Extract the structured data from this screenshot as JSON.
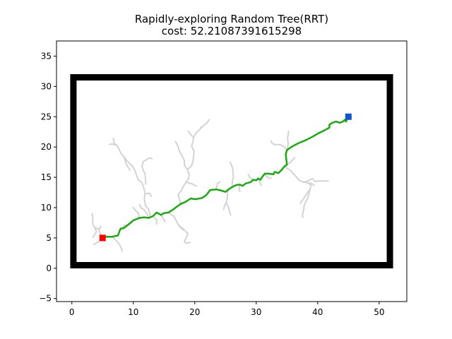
{
  "chart_data": {
    "type": "line",
    "title": "Rapidly-exploring Random Tree(RRT)",
    "subtitle": "cost: 52.21087391615298",
    "xlabel": "",
    "ylabel": "",
    "xlim": [
      -2.5,
      54.5
    ],
    "ylim": [
      -5.5,
      37.5
    ],
    "xticks": [
      0,
      10,
      20,
      30,
      40,
      50
    ],
    "yticks": [
      -5,
      0,
      5,
      10,
      15,
      20,
      25,
      30,
      35
    ],
    "grid": false,
    "colors": {
      "obstacle": "#000000",
      "tree": "#d3d3d3",
      "path": "#1aaa10",
      "start": "#ff0000",
      "goal": "#1155cc"
    },
    "obstacle_rect": {
      "x0": 0.25,
      "y0": 0.5,
      "x1": 51.75,
      "y1": 31.5
    },
    "start": {
      "x": 5,
      "y": 5
    },
    "goal": {
      "x": 45,
      "y": 25
    },
    "path": [
      [
        5,
        5.2
      ],
      [
        6.5,
        5.2
      ],
      [
        7.5,
        5.4
      ],
      [
        7.9,
        6.5
      ],
      [
        8.4,
        6.6
      ],
      [
        9.2,
        7.2
      ],
      [
        10,
        7.9
      ],
      [
        11,
        8.3
      ],
      [
        11.8,
        8.4
      ],
      [
        12.5,
        8.3
      ],
      [
        13.2,
        8.6
      ],
      [
        13.8,
        9.2
      ],
      [
        14.5,
        8.8
      ],
      [
        15,
        9.1
      ],
      [
        15.7,
        9.2
      ],
      [
        16.5,
        9.7
      ],
      [
        17,
        10.1
      ],
      [
        17.7,
        10.6
      ],
      [
        18.6,
        11
      ],
      [
        19.3,
        11.5
      ],
      [
        20.2,
        11.4
      ],
      [
        21.2,
        11.6
      ],
      [
        21.9,
        12.1
      ],
      [
        22.5,
        12.9
      ],
      [
        23.5,
        13
      ],
      [
        24.4,
        12.8
      ],
      [
        25,
        12.6
      ],
      [
        25.6,
        13.1
      ],
      [
        26.1,
        13.4
      ],
      [
        26.7,
        13.7
      ],
      [
        27.3,
        13.8
      ],
      [
        27.8,
        13.6
      ],
      [
        28.3,
        14
      ],
      [
        29.1,
        14.2
      ],
      [
        29.5,
        14.6
      ],
      [
        30,
        14.5
      ],
      [
        30.3,
        14.8
      ],
      [
        30.7,
        14.6
      ],
      [
        31,
        15.1
      ],
      [
        31.4,
        15.6
      ],
      [
        32,
        15.6
      ],
      [
        32.8,
        15.5
      ],
      [
        33,
        15.9
      ],
      [
        33.6,
        15.7
      ],
      [
        34.1,
        16.2
      ],
      [
        34.6,
        16.8
      ],
      [
        35,
        17.1
      ],
      [
        34.9,
        17.9
      ],
      [
        34.8,
        18.8
      ],
      [
        35,
        19.5
      ],
      [
        35.7,
        20
      ],
      [
        36.8,
        20.6
      ],
      [
        38,
        21.1
      ],
      [
        39,
        21.6
      ],
      [
        40,
        22.2
      ],
      [
        41,
        22.7
      ],
      [
        41.9,
        23.2
      ],
      [
        41.9,
        23.7
      ],
      [
        42.4,
        24
      ],
      [
        43,
        24.2
      ],
      [
        43.6,
        24
      ],
      [
        44.1,
        24.2
      ],
      [
        44.4,
        24.5
      ],
      [
        44.6,
        24.2
      ],
      [
        45,
        25
      ]
    ],
    "tree_branches": [
      [
        [
          5.1,
          5.2
        ],
        [
          4.6,
          5.7
        ],
        [
          4.4,
          6.4
        ],
        [
          3.6,
          6.8
        ],
        [
          3.4,
          7.4
        ],
        [
          3.4,
          8.2
        ],
        [
          3.3,
          9.1
        ]
      ],
      [
        [
          4.4,
          6.4
        ],
        [
          4.8,
          7
        ]
      ],
      [
        [
          3.7,
          6.8
        ],
        [
          4,
          6
        ],
        [
          3.6,
          5.4
        ],
        [
          3.4,
          5
        ]
      ],
      [
        [
          5,
          5.2
        ],
        [
          4.5,
          4.5
        ],
        [
          3.9,
          4.1
        ],
        [
          3.5,
          3.9
        ]
      ],
      [
        [
          6.5,
          5.2
        ],
        [
          7.1,
          4.7
        ],
        [
          7.7,
          4
        ],
        [
          8.1,
          3.2
        ],
        [
          8.2,
          2.7
        ]
      ],
      [
        [
          8,
          6.6
        ],
        [
          8.6,
          7.1
        ],
        [
          9.2,
          7.2
        ]
      ],
      [
        [
          10.9,
          8.3
        ],
        [
          10.9,
          9
        ],
        [
          10.4,
          9.5
        ],
        [
          9.9,
          10.1
        ]
      ],
      [
        [
          12.6,
          8.3
        ],
        [
          12.2,
          9
        ],
        [
          11.8,
          9.6
        ],
        [
          11.2,
          10
        ],
        [
          11,
          10.6
        ]
      ],
      [
        [
          12.8,
          8.4
        ],
        [
          12.5,
          9.7
        ],
        [
          12,
          10.3
        ],
        [
          11.8,
          11.4
        ],
        [
          11.9,
          12.3
        ],
        [
          11.7,
          13.3
        ],
        [
          11.4,
          14.1
        ]
      ],
      [
        [
          12,
          12.3
        ],
        [
          12.6,
          12.4
        ],
        [
          13,
          11.8
        ]
      ],
      [
        [
          11.4,
          14.1
        ],
        [
          10.8,
          14.6
        ],
        [
          10.5,
          15.4
        ],
        [
          10.3,
          16
        ],
        [
          9.9,
          16.8
        ],
        [
          9.5,
          17.2
        ],
        [
          8.9,
          17.8
        ],
        [
          8.5,
          18.4
        ],
        [
          8,
          18.9
        ],
        [
          7.7,
          19.6
        ],
        [
          7.3,
          20.3
        ],
        [
          6.9,
          20.6
        ],
        [
          6.7,
          21.5
        ]
      ],
      [
        [
          7.3,
          20.3
        ],
        [
          6.5,
          20.5
        ],
        [
          6,
          20.4
        ]
      ],
      [
        [
          8.5,
          18.4
        ],
        [
          8.8,
          17.3
        ],
        [
          9.2,
          16.6
        ],
        [
          9.5,
          16.1
        ]
      ],
      [
        [
          12,
          13.8
        ],
        [
          12,
          14.6
        ],
        [
          11.9,
          15.6
        ],
        [
          11.6,
          16.2
        ],
        [
          11.4,
          16.8
        ],
        [
          11.6,
          17.6
        ],
        [
          12,
          17.8
        ],
        [
          12.4,
          18.1
        ],
        [
          12.8,
          18.2
        ],
        [
          13.1,
          18
        ]
      ],
      [
        [
          13.2,
          8.6
        ],
        [
          13.8,
          8
        ],
        [
          13.8,
          7.2
        ]
      ],
      [
        [
          14.5,
          8.8
        ],
        [
          14.9,
          8.2
        ],
        [
          15.2,
          7.6
        ]
      ],
      [
        [
          15.7,
          9.2
        ],
        [
          16.6,
          8.6
        ],
        [
          17,
          7.8
        ],
        [
          17.3,
          7.2
        ],
        [
          17.7,
          6.7
        ],
        [
          18.2,
          6.2
        ]
      ],
      [
        [
          17.3,
          7.2
        ],
        [
          18,
          6.6
        ],
        [
          18.9,
          5.7
        ],
        [
          18.6,
          5
        ],
        [
          18.3,
          4.4
        ],
        [
          18.6,
          4.1
        ],
        [
          19.3,
          4.3
        ]
      ],
      [
        [
          17.7,
          10.5
        ],
        [
          17.5,
          11.4
        ],
        [
          17.3,
          12.2
        ],
        [
          17.8,
          12.8
        ],
        [
          18.2,
          13.6
        ],
        [
          18.6,
          14.2
        ],
        [
          19,
          14.8
        ],
        [
          19.1,
          15.5
        ],
        [
          18.8,
          16.3
        ],
        [
          18.3,
          17
        ],
        [
          18.3,
          17.8
        ],
        [
          17.9,
          18.6
        ],
        [
          17.5,
          19.3
        ],
        [
          17.3,
          20.1
        ],
        [
          16.8,
          21
        ]
      ],
      [
        [
          18.8,
          16.3
        ],
        [
          19.4,
          16.8
        ],
        [
          19.7,
          17.6
        ],
        [
          19.8,
          18.4
        ],
        [
          19.9,
          19.3
        ],
        [
          19.5,
          20.1
        ],
        [
          19.7,
          20.9
        ],
        [
          19.8,
          21.6
        ],
        [
          20.3,
          22.4
        ],
        [
          20.9,
          23
        ],
        [
          21.1,
          23.4
        ]
      ],
      [
        [
          19.8,
          21.6
        ],
        [
          19.3,
          22.1
        ],
        [
          18.9,
          22.7
        ]
      ],
      [
        [
          20.9,
          23
        ],
        [
          21.5,
          23.6
        ],
        [
          22,
          24
        ],
        [
          22.4,
          24.6
        ]
      ],
      [
        [
          18.6,
          14.2
        ],
        [
          19.6,
          13.9
        ],
        [
          20.3,
          13.5
        ]
      ],
      [
        [
          23.5,
          13.1
        ],
        [
          23.7,
          14
        ],
        [
          24.2,
          14.3
        ]
      ],
      [
        [
          25.6,
          13.1
        ],
        [
          25.3,
          12.4
        ],
        [
          25.3,
          11.6
        ],
        [
          25.1,
          10.8
        ],
        [
          25.5,
          10
        ],
        [
          25.7,
          9.1
        ],
        [
          25.9,
          8.7
        ]
      ],
      [
        [
          25.1,
          10.8
        ],
        [
          24.8,
          10.2
        ],
        [
          24.7,
          9.6
        ]
      ],
      [
        [
          26.1,
          13.4
        ],
        [
          26.1,
          14.4
        ],
        [
          26.3,
          15
        ],
        [
          26.2,
          15.7
        ],
        [
          26.2,
          16.4
        ],
        [
          26,
          16.9
        ],
        [
          25.7,
          17.6
        ]
      ],
      [
        [
          27.3,
          13.8
        ],
        [
          27.2,
          13
        ],
        [
          27.4,
          12.6
        ]
      ],
      [
        [
          29.5,
          14.6
        ],
        [
          28.9,
          15
        ],
        [
          28.7,
          15.6
        ]
      ],
      [
        [
          30.3,
          14.8
        ],
        [
          30.6,
          14.1
        ],
        [
          30.9,
          13.6
        ]
      ],
      [
        [
          31.4,
          15.6
        ],
        [
          31.8,
          15
        ],
        [
          32.5,
          14.8
        ]
      ],
      [
        [
          34.6,
          16.8
        ],
        [
          35,
          16.5
        ],
        [
          35.6,
          16.1
        ],
        [
          36,
          15.6
        ],
        [
          36.5,
          15.1
        ],
        [
          37,
          14.5
        ],
        [
          37.7,
          14.2
        ],
        [
          38.4,
          14.1
        ],
        [
          38.9,
          13.7
        ],
        [
          38.8,
          13.1
        ],
        [
          38.6,
          12.4
        ],
        [
          38.4,
          11.6
        ],
        [
          38.1,
          11
        ],
        [
          37.8,
          10.4
        ],
        [
          37.7,
          9.5
        ],
        [
          37.5,
          8.9
        ],
        [
          37.6,
          8.3
        ]
      ],
      [
        [
          38.4,
          14.1
        ],
        [
          39,
          14
        ],
        [
          39.5,
          13.6
        ]
      ],
      [
        [
          37.7,
          14.2
        ],
        [
          38.6,
          14.5
        ],
        [
          39.1,
          14.8
        ],
        [
          39.6,
          14.3
        ],
        [
          40.2,
          14.4
        ],
        [
          41,
          14.4
        ],
        [
          41.8,
          14.4
        ]
      ],
      [
        [
          38.8,
          13.1
        ],
        [
          38.3,
          12.4
        ],
        [
          37.9,
          11.8
        ],
        [
          37.5,
          11.2
        ],
        [
          37.1,
          10.6
        ]
      ],
      [
        [
          35,
          17.1
        ],
        [
          35.6,
          17.5
        ],
        [
          36.3,
          18.3
        ]
      ],
      [
        [
          35,
          19.5
        ],
        [
          34.6,
          20
        ],
        [
          34.1,
          20.3
        ],
        [
          33.6,
          20.4
        ],
        [
          33,
          20.4
        ],
        [
          32.6,
          20.6
        ],
        [
          32.4,
          21.1
        ]
      ],
      [
        [
          35,
          19.5
        ],
        [
          35.2,
          20.5
        ],
        [
          35.1,
          21.4
        ],
        [
          35.2,
          22.2
        ],
        [
          35.3,
          22.7
        ]
      ]
    ]
  }
}
